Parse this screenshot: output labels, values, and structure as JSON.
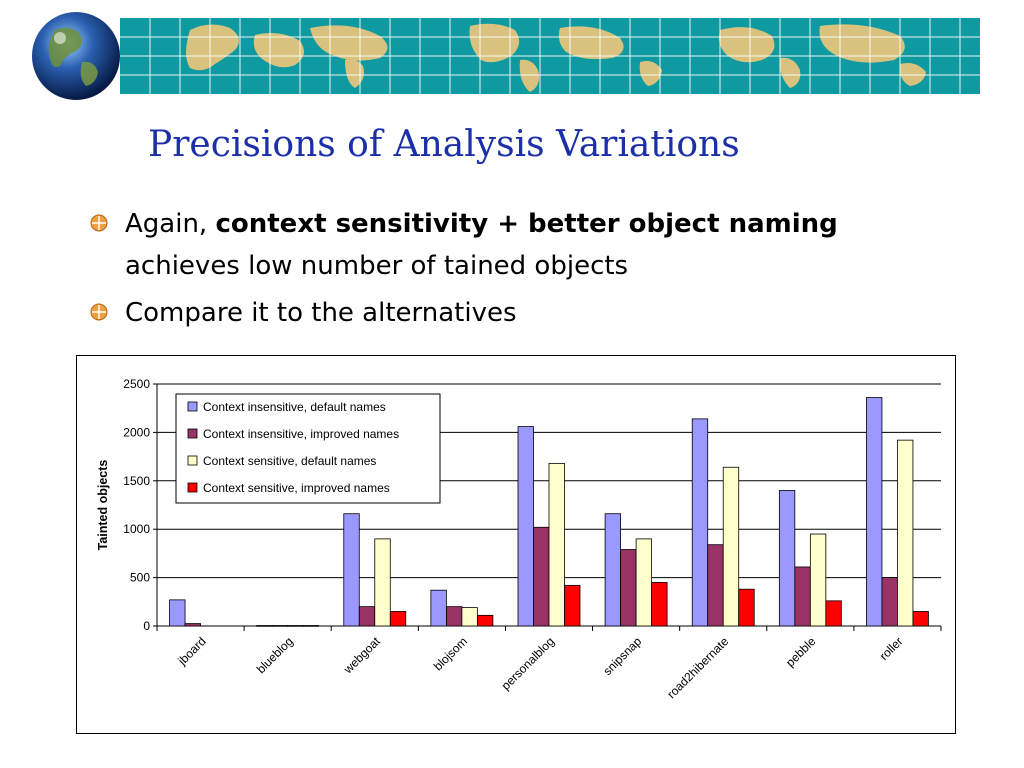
{
  "slide": {
    "title": "Precisions of Analysis Variations",
    "bullets": [
      {
        "parts": [
          {
            "text": "Again, ",
            "bold": false
          },
          {
            "text": "context sensitivity + better object naming",
            "bold": true
          },
          {
            "text": " achieves low number of tained objects",
            "bold": false
          }
        ]
      },
      {
        "parts": [
          {
            "text": "Compare it to the alternatives",
            "bold": false
          }
        ]
      }
    ]
  },
  "chart_data": {
    "type": "bar",
    "title": "",
    "xlabel": "",
    "ylabel": "Tainted objects",
    "ylim": [
      0,
      2500
    ],
    "yticks": [
      0,
      500,
      1000,
      1500,
      2000,
      2500
    ],
    "grid": true,
    "legend_position": "top-left",
    "categories": [
      "jboard",
      "blueblog",
      "webgoat",
      "blojsom",
      "personalblog",
      "snipsnap",
      "road2hibernate",
      "pebble",
      "roller"
    ],
    "series": [
      {
        "name": "Context insensitive, default names",
        "color": "#9999ff",
        "values": [
          270,
          5,
          1160,
          370,
          2060,
          1160,
          2140,
          1400,
          2360
        ]
      },
      {
        "name": "Context insensitive, improved names",
        "color": "#993366",
        "values": [
          25,
          5,
          200,
          200,
          1020,
          790,
          840,
          610,
          500
        ]
      },
      {
        "name": "Context sensitive, default names",
        "color": "#ffffcc",
        "values": [
          0,
          5,
          900,
          190,
          1680,
          900,
          1640,
          950,
          1920
        ]
      },
      {
        "name": "Context sensitive, improved names",
        "color": "#ff0000",
        "values": [
          0,
          5,
          150,
          110,
          420,
          450,
          380,
          260,
          150
        ]
      }
    ]
  }
}
